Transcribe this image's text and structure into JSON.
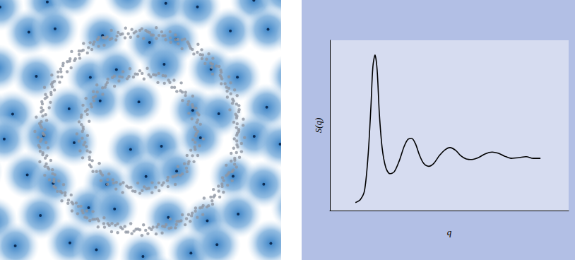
{
  "chart_data": {
    "type": "line",
    "xlabel": "q",
    "ylabel": "S(q)",
    "color": "#000000",
    "x": [
      1.07,
      1.27,
      1.45,
      1.6,
      1.72,
      1.8,
      1.89,
      1.98,
      2.07,
      2.19,
      2.34,
      2.51,
      2.69,
      2.9,
      3.11,
      3.28,
      3.43,
      3.58,
      3.76,
      3.93,
      4.14,
      4.35,
      4.59,
      4.82,
      5.03,
      5.27,
      5.47,
      5.71,
      5.95,
      6.21,
      6.51,
      6.8,
      7.04,
      7.31,
      7.6,
      7.9,
      8.22,
      8.52,
      8.82
    ],
    "values": [
      0.14,
      0.19,
      0.35,
      0.97,
      1.84,
      2.53,
      2.74,
      2.47,
      1.72,
      1.1,
      0.76,
      0.65,
      0.68,
      0.87,
      1.13,
      1.26,
      1.27,
      1.18,
      0.97,
      0.83,
      0.78,
      0.83,
      0.97,
      1.07,
      1.11,
      1.06,
      0.97,
      0.91,
      0.9,
      0.93,
      1.0,
      1.03,
      1.01,
      0.96,
      0.92,
      0.93,
      0.95,
      0.92,
      0.92
    ],
    "xlim": [
      0,
      10
    ],
    "ylim": [
      0,
      3
    ],
    "tick_labels": false,
    "grid": false
  }
}
